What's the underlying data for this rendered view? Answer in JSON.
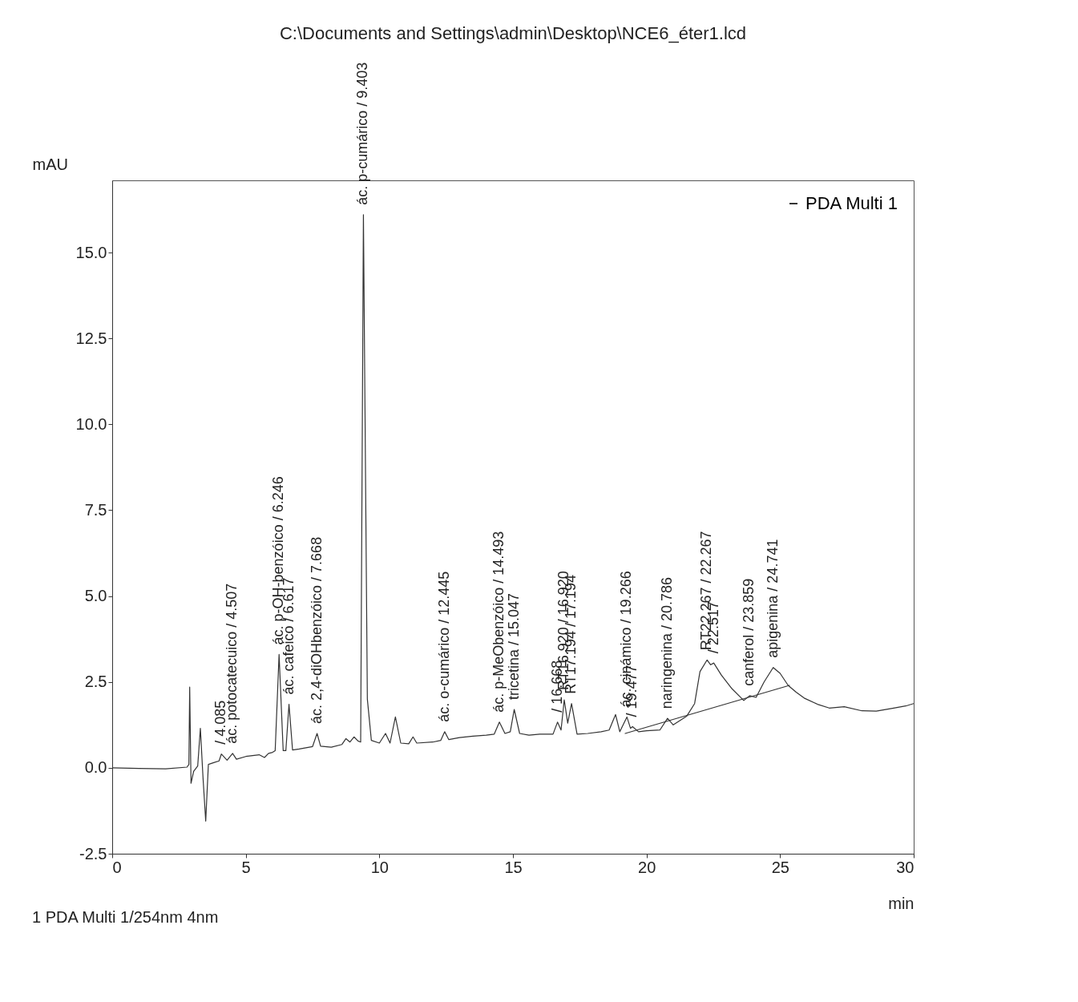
{
  "chart_data": {
    "type": "line",
    "title": "C:\\Documents and Settings\\admin\\Desktop\\NCE6_éter1.lcd",
    "xlabel": "min",
    "ylabel": "mAU",
    "xlim": [
      0,
      30
    ],
    "xticks": [
      0,
      5,
      10,
      15,
      20,
      25,
      30
    ],
    "ylim": [
      -2.5,
      17.1
    ],
    "yticks": [
      {
        "value": -2.5,
        "label": "-2.5"
      },
      {
        "value": 0,
        "label": "0.0"
      },
      {
        "value": 2.5,
        "label": "2.5"
      },
      {
        "value": 5,
        "label": "5.0"
      },
      {
        "value": 7.5,
        "label": "7.5"
      },
      {
        "value": 10,
        "label": "10.0"
      },
      {
        "value": 12.5,
        "label": "12.5"
      },
      {
        "value": 15,
        "label": "15.0"
      }
    ],
    "grid": false,
    "legend": "top right",
    "series": [
      {
        "name": "PDA Multi 1",
        "color": "#333333",
        "x": [
          0,
          1,
          2,
          2.8,
          2.87,
          2.9,
          2.95,
          3.05,
          3.2,
          3.3,
          3.4,
          3.5,
          3.6,
          3.8,
          4.0,
          4.085,
          4.3,
          4.507,
          4.65,
          5.0,
          5.5,
          5.7,
          5.85,
          6.0,
          6.1,
          6.246,
          6.4,
          6.5,
          6.617,
          6.75,
          7.0,
          7.5,
          7.668,
          7.8,
          8.2,
          8.6,
          8.75,
          8.9,
          9.05,
          9.2,
          9.3,
          9.403,
          9.55,
          9.7,
          10.0,
          10.23,
          10.4,
          10.6,
          10.8,
          11.1,
          11.26,
          11.4,
          12.0,
          12.3,
          12.445,
          12.6,
          13.0,
          13.5,
          14.0,
          14.3,
          14.493,
          14.7,
          14.9,
          15.047,
          15.25,
          15.6,
          16.0,
          16.5,
          16.668,
          16.8,
          16.92,
          17.05,
          17.194,
          17.4,
          17.8,
          18.3,
          18.6,
          18.84,
          19.0,
          19.266,
          19.4,
          19.477,
          19.7,
          20.0,
          20.5,
          20.786,
          21.0,
          21.5,
          21.8,
          22.0,
          22.267,
          22.4,
          22.517,
          22.8,
          23.2,
          23.64,
          23.859,
          24.1,
          24.4,
          24.741,
          25.0,
          25.3,
          25.6,
          25.9,
          26.4,
          26.84,
          27.4,
          28.06,
          28.6,
          29.25,
          29.7,
          30
        ],
        "values": [
          0,
          -0.02,
          -0.03,
          0.02,
          0.1,
          2.35,
          -0.45,
          -0.1,
          0.05,
          1.15,
          -0.3,
          -1.55,
          0.1,
          0.15,
          0.2,
          0.4,
          0.22,
          0.42,
          0.25,
          0.33,
          0.38,
          0.3,
          0.42,
          0.45,
          0.5,
          3.3,
          0.5,
          0.5,
          1.85,
          0.52,
          0.55,
          0.62,
          1.0,
          0.63,
          0.6,
          0.68,
          0.85,
          0.75,
          0.9,
          0.78,
          0.75,
          16.1,
          2.0,
          0.8,
          0.72,
          1.0,
          0.72,
          1.48,
          0.72,
          0.7,
          0.9,
          0.72,
          0.75,
          0.8,
          1.05,
          0.82,
          0.88,
          0.92,
          0.95,
          0.98,
          1.33,
          1.0,
          1.05,
          1.7,
          1.0,
          0.95,
          0.98,
          0.98,
          1.33,
          1.1,
          1.98,
          1.3,
          1.87,
          0.98,
          1.0,
          1.05,
          1.1,
          1.55,
          1.05,
          1.48,
          1.15,
          1.2,
          1.05,
          1.08,
          1.1,
          1.44,
          1.25,
          1.5,
          1.87,
          2.8,
          3.14,
          3.0,
          3.05,
          2.7,
          2.3,
          1.96,
          2.1,
          2.05,
          2.5,
          2.92,
          2.75,
          2.4,
          2.2,
          2.03,
          1.85,
          1.74,
          1.78,
          1.66,
          1.65,
          1.74,
          1.8,
          1.87
        ]
      },
      {
        "color": "#333333",
        "x": [
          19.2,
          25.35
        ],
        "values": [
          1.0,
          2.4
        ]
      }
    ],
    "annotations": [
      {
        "text": "/ 4.085",
        "x": 4.085,
        "y": 0.4
      },
      {
        "text": "ác. potocatecuico / 4.507",
        "x": 4.507,
        "y": 0.42
      },
      {
        "text": "ác. p-OH-benzóico / 6.246",
        "x": 6.246,
        "y": 3.3
      },
      {
        "text": "ác. cafeico / 6.617",
        "x": 6.617,
        "y": 1.85
      },
      {
        "text": "ác. 2,4-diOHbenzóico / 7.668",
        "x": 7.668,
        "y": 1.0
      },
      {
        "text": "ác. p-cumárico / 9.403",
        "x": 9.403,
        "y": 16.1
      },
      {
        "text": "ác. o-cumárico / 12.445",
        "x": 12.445,
        "y": 1.05
      },
      {
        "text": "ác. p-MeObenzóico / 14.493",
        "x": 14.493,
        "y": 1.33
      },
      {
        "text": "tricetina / 15.047",
        "x": 15.047,
        "y": 1.7
      },
      {
        "text": "/ 16.668",
        "x": 16.668,
        "y": 1.33
      },
      {
        "text": "RT16.920 / 16.920",
        "x": 16.92,
        "y": 1.98
      },
      {
        "text": "RT17.194 / 17.194",
        "x": 17.194,
        "y": 1.87
      },
      {
        "text": "ác. cinámico / 19.266",
        "x": 19.266,
        "y": 1.48
      },
      {
        "text": "/ 19.477",
        "x": 19.477,
        "y": 1.2
      },
      {
        "text": "naringenina / 20.786",
        "x": 20.786,
        "y": 1.44
      },
      {
        "text": "RT22.267 / 22.267",
        "x": 22.267,
        "y": 3.14
      },
      {
        "text": "/ 22.517",
        "x": 22.517,
        "y": 3.05
      },
      {
        "text": "canferol / 23.859",
        "x": 23.859,
        "y": 2.1
      },
      {
        "text": "apigenina / 24.741",
        "x": 24.741,
        "y": 2.92
      },
      "1  PDA Multi 1/254nm 4nm"
    ]
  }
}
